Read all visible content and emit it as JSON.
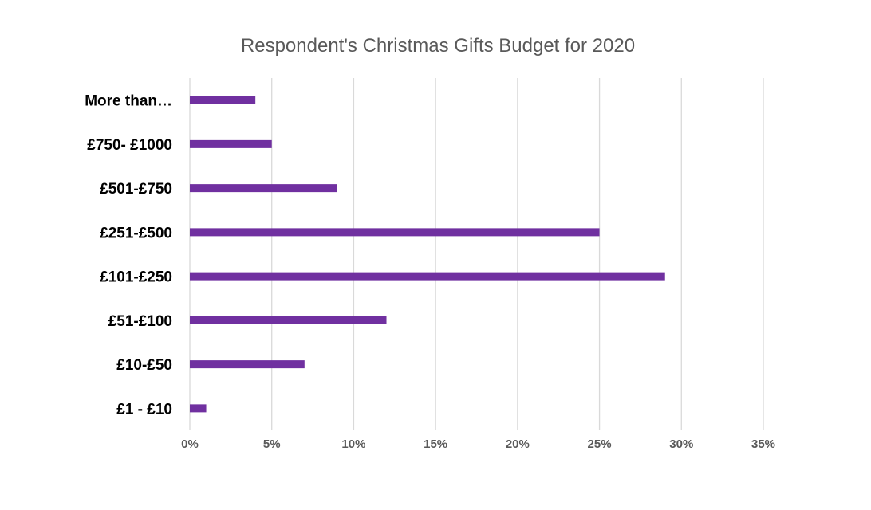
{
  "chart_data": {
    "type": "bar",
    "orientation": "horizontal",
    "title": "Respondent's Christmas Gifts Budget for 2020",
    "xlabel": "",
    "ylabel": "",
    "categories": [
      "£1 - £10",
      "£10-£50",
      "£51-£100",
      "£101-£250",
      "£251-£500",
      "£501-£750",
      "£750- £1000",
      "More than…"
    ],
    "values": [
      1,
      7,
      12,
      29,
      25,
      9,
      5,
      4
    ],
    "value_unit": "%",
    "xlim": [
      0,
      35
    ],
    "x_ticks": [
      0,
      5,
      10,
      15,
      20,
      25,
      30,
      35
    ],
    "x_tick_labels": [
      "0%",
      "5%",
      "10%",
      "15%",
      "20%",
      "25%",
      "30%",
      "35%"
    ],
    "grid": "vertical",
    "legend": "none",
    "bar_color": "#7030a0",
    "grid_color": "#d9d9d9"
  }
}
